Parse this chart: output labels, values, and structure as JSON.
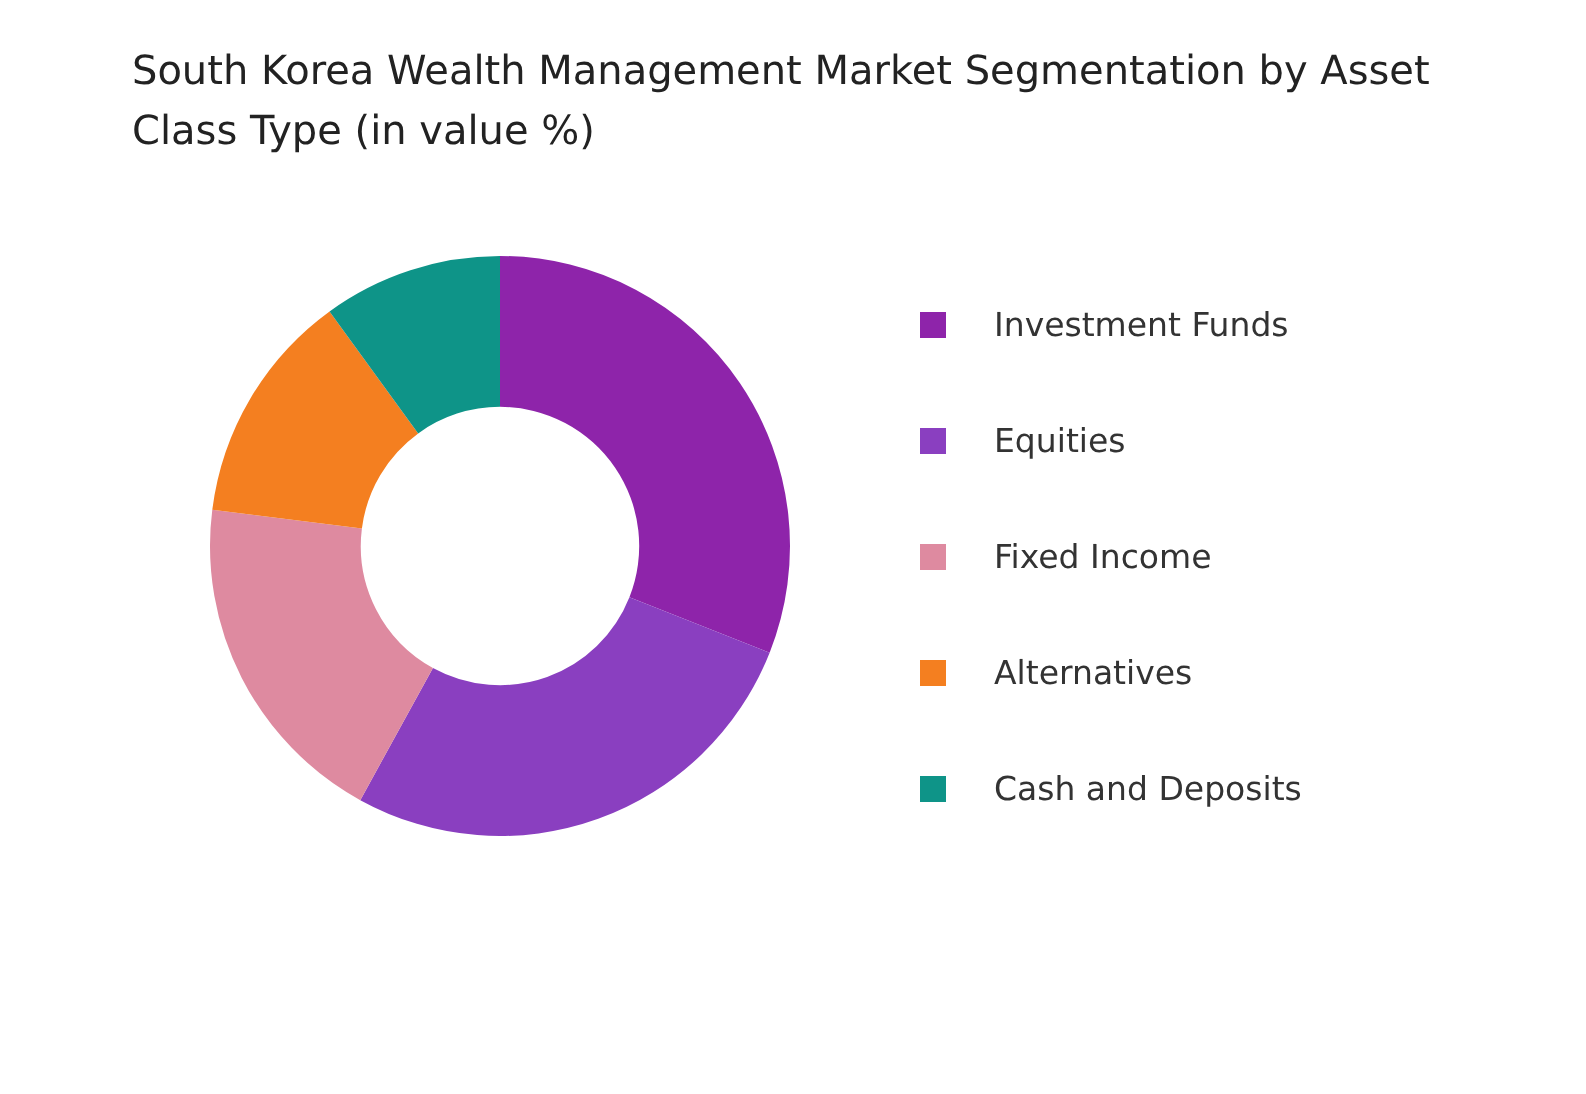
{
  "chart_data": {
    "type": "donut",
    "title": "South Korea Wealth Management Market Segmentation by Asset Class Type (in value %)",
    "categories": [
      "Investment Funds",
      "Equities",
      "Fixed Income",
      "Alternatives",
      "Cash and Deposits"
    ],
    "values": [
      31,
      27,
      19,
      13,
      10
    ],
    "colors": [
      "#8e24aa",
      "#8a3fc0",
      "#de8aa0",
      "#f47f20",
      "#0e9488"
    ],
    "legend": "right"
  }
}
